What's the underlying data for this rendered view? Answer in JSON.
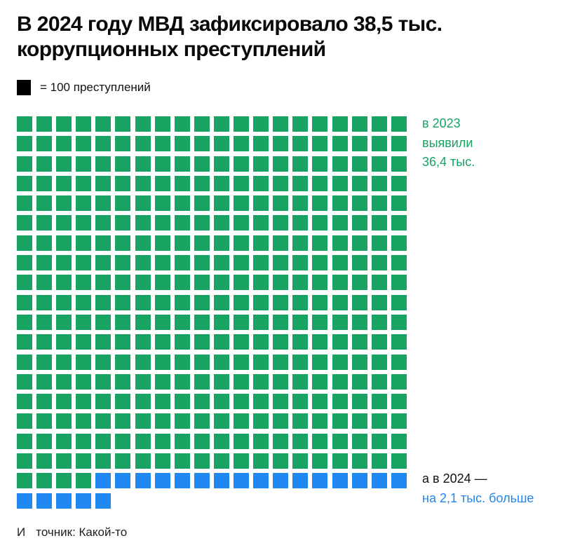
{
  "title": {
    "line1": "В 2024 году МВД зафиксировало 38,5 тыс.",
    "line2": "коррупционных преступлений"
  },
  "legend": {
    "label": "= 100 преступлений",
    "square_color": "#000000"
  },
  "chart_data": {
    "type": "waffle",
    "title": "В 2024 году МВД зафиксировало 38,5 тыс. коррупционных преступлений",
    "unit_per_square": 100,
    "columns": 20,
    "rows": 20,
    "total_crimes_thousands": 38.5,
    "series": [
      {
        "key": "2023",
        "label": "в 2023 выявили 36,4 тыс.",
        "value_thousands": 36.4,
        "squares": 364,
        "color": "#18A362"
      },
      {
        "key": "2024-extra",
        "label": "а в 2024 — на 2,1 тыс. больше",
        "value_thousands": 2.1,
        "squares": 21,
        "color": "#1E87F0"
      }
    ]
  },
  "annotations": {
    "y2023": {
      "line1": "в 2023",
      "line2": "выявили",
      "line3": "36,4 тыс.",
      "color": "#18A362"
    },
    "y2024": {
      "line1": "а в 2024 —",
      "line2": "на 2,1 тыс. больше",
      "line1_color": "#111111",
      "line2_color": "#1E87F0"
    }
  },
  "source": {
    "part1": "И",
    "part2": "точник: Какой-то"
  }
}
